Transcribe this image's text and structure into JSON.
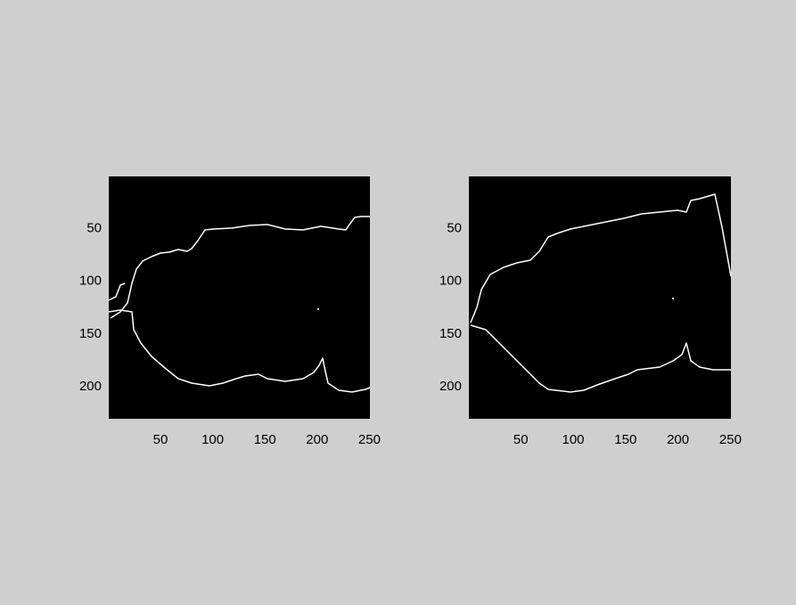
{
  "chart_data": [
    {
      "type": "image",
      "xlim": [
        0.5,
        250.5
      ],
      "ylim": [
        0.5,
        230.5
      ],
      "xticks": [
        50,
        100,
        150,
        200,
        250
      ],
      "yticks": [
        50,
        100,
        150,
        200
      ],
      "y_reversed": true,
      "background": "#000000"
    },
    {
      "type": "image",
      "xlim": [
        0.5,
        250.5
      ],
      "ylim": [
        0.5,
        230.5
      ],
      "xticks": [
        50,
        100,
        150,
        200,
        250
      ],
      "yticks": [
        50,
        100,
        150,
        200
      ],
      "y_reversed": true,
      "background": "#000000"
    }
  ]
}
